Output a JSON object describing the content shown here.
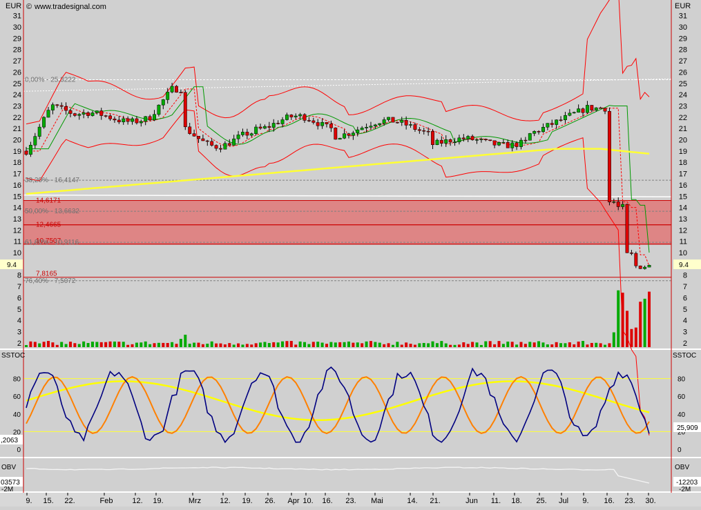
{
  "header": {
    "source": "www.tradesignal.com",
    "currency": "EUR"
  },
  "panels": {
    "stoch_label": "SSTOC",
    "obv_label": "OBV"
  },
  "readouts": {
    "price_last": "9.4",
    "stoch_left": ",2063",
    "stoch_right": "25,909",
    "obv_left": "03573",
    "obv_right": "-12203",
    "obv_left_cut": "-2M",
    "obv_right_cut": "-2M"
  },
  "colors": {
    "background": "#d0d0d0",
    "bull_candle": "#00aa00",
    "bear_candle": "#dd0000",
    "bollinger": "#ff0000",
    "envelope": "#009900",
    "sma200": "#ffff33",
    "fib_line": "#808080",
    "stoch_fast": "#000080",
    "stoch_slow": "#ff8000",
    "stoch_signal": "#ffff00",
    "zone_fill": "#e07878",
    "axis_line": "#cc0000"
  },
  "chart_data": {
    "type": "candlestick",
    "y_price_range": [
      1.5,
      32
    ],
    "y_price_ticks": [
      "2",
      "3",
      "4",
      "5",
      "6",
      "7",
      "8",
      "9",
      "10",
      "11",
      "12",
      "13",
      "14",
      "15",
      "16",
      "17",
      "18",
      "19",
      "20",
      "21",
      "22",
      "23",
      "24",
      "25",
      "26",
      "27",
      "28",
      "29",
      "30",
      "31"
    ],
    "y_stoch_ticks": [
      "0",
      "20",
      "40",
      "60",
      "80"
    ],
    "x_ticks": [
      "9.",
      "15.",
      "22.",
      "Feb",
      "12.",
      "19.",
      "Mrz",
      "12.",
      "19.",
      "26.",
      "Apr",
      "10.",
      "16.",
      "23.",
      "Mai",
      "14.",
      "21.",
      "Jun",
      "11.",
      "18.",
      "25.",
      "Jul",
      "9.",
      "16.",
      "23.",
      "30."
    ],
    "fibonacci": [
      {
        "label": "0,00% - 25,3222",
        "value": 25.3222
      },
      {
        "label": "38,20% - 16,4147",
        "value": 16.4147
      },
      {
        "label": "50,00% - 13,6632",
        "value": 13.6632
      },
      {
        "label": "61,80% - 10,9116",
        "value": 10.9116
      },
      {
        "label": "76,40% - 7,5072",
        "value": 7.5072
      }
    ],
    "zones": [
      {
        "top": 14.6171,
        "bottom": 12.4665,
        "label_top": "14,6171",
        "label_bottom": "12,4665"
      },
      {
        "top": 12.4665,
        "bottom": 10.7507,
        "label_bottom": "10,7507"
      }
    ],
    "levels": [
      {
        "label": "10,7507",
        "value": 10.7507
      },
      {
        "label": "7,8165",
        "value": 7.8165
      }
    ],
    "stoch_levels": [
      20,
      80
    ],
    "last_price": 9.4
  }
}
